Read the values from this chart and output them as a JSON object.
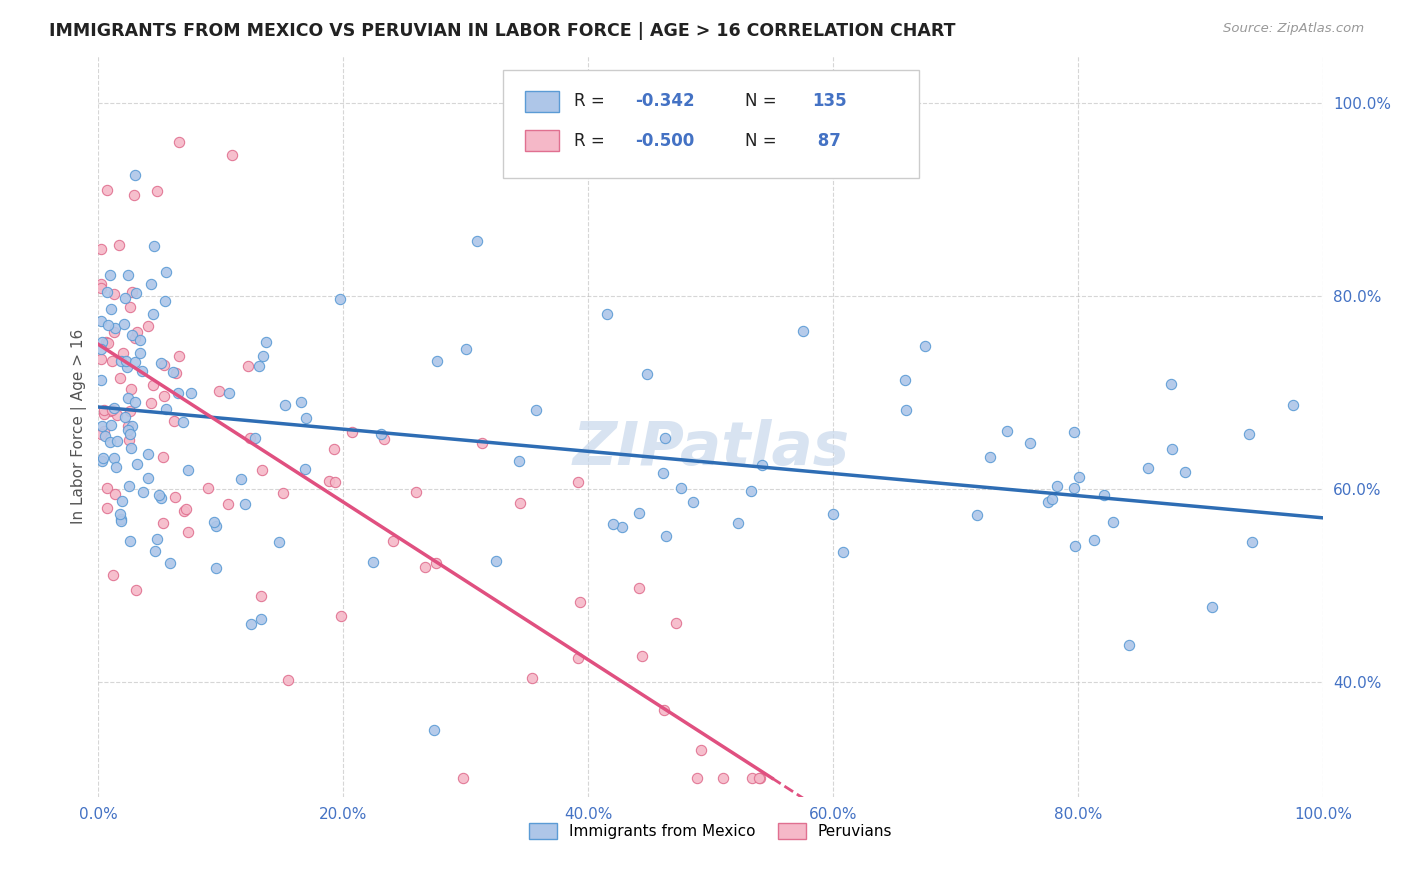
{
  "title": "IMMIGRANTS FROM MEXICO VS PERUVIAN IN LABOR FORCE | AGE > 16 CORRELATION CHART",
  "source": "Source: ZipAtlas.com",
  "ylabel": "In Labor Force | Age > 16",
  "xlim": [
    0,
    100
  ],
  "ylim": [
    28,
    105
  ],
  "x_ticks": [
    0,
    20,
    40,
    60,
    80,
    100
  ],
  "x_tick_labels": [
    "0.0%",
    "20.0%",
    "40.0%",
    "60.0%",
    "80.0%",
    "100.0%"
  ],
  "y_ticks": [
    40,
    60,
    80,
    100
  ],
  "y_tick_labels": [
    "40.0%",
    "60.0%",
    "80.0%",
    "100.0%"
  ],
  "mexico_fill_color": "#aec6e8",
  "mexico_edge_color": "#5b9bd5",
  "peru_fill_color": "#f5b8c8",
  "peru_edge_color": "#e07090",
  "mexico_line_color": "#2e6db4",
  "peru_line_color": "#e05080",
  "R_mexico": -0.342,
  "N_mexico": 135,
  "R_peru": -0.5,
  "N_peru": 87,
  "legend_mexico": "Immigrants from Mexico",
  "legend_peru": "Peruvians",
  "background_color": "#ffffff",
  "grid_color": "#bbbbbb",
  "title_color": "#222222",
  "axis_label_color": "#555555",
  "stat_color": "#4472c4",
  "watermark_color": "#c8d8ec",
  "watermark_text": "ZIPatlas",
  "mexico_line_start_y": 68.5,
  "mexico_line_end_y": 57.0,
  "peru_line_start_y": 75.0,
  "peru_line_end_y": 30.0,
  "peru_dash_start_x": 55,
  "peru_dash_end_x": 100
}
